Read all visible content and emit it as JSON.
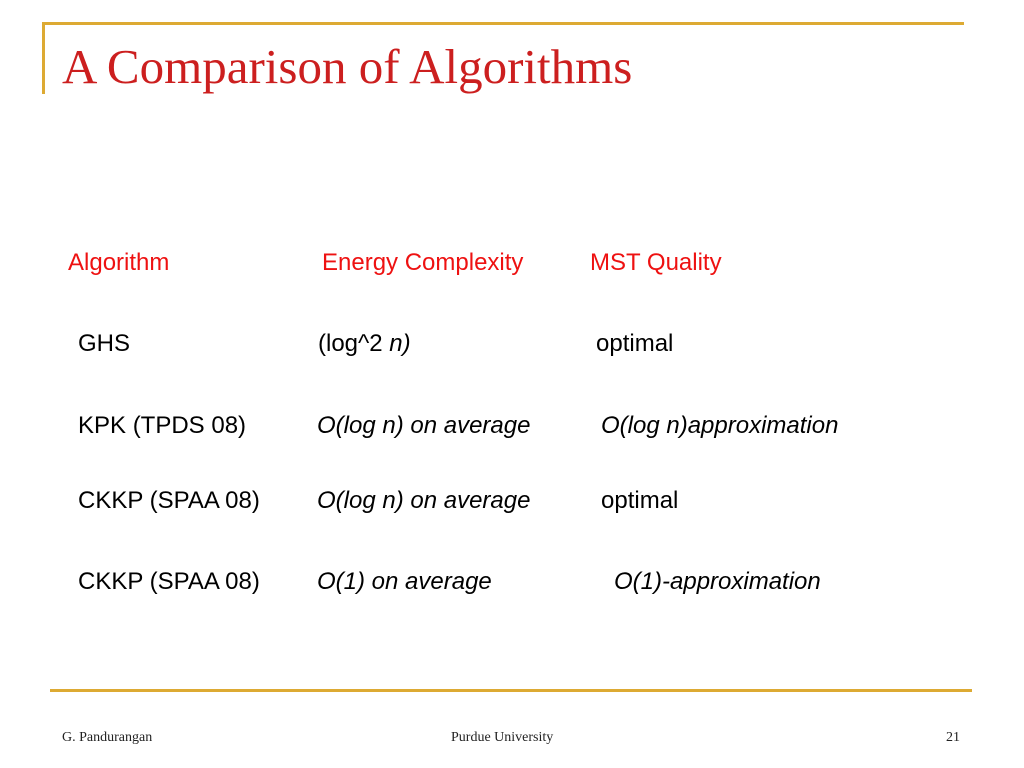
{
  "slide": {
    "title": "A Comparison of Algorithms"
  },
  "table": {
    "headers": {
      "algorithm": "Algorithm",
      "energy": "Energy Complexity",
      "quality": "MST Quality"
    },
    "rows": [
      {
        "algorithm": "GHS",
        "energy_prefix": "(log^2 ",
        "energy_var": "n",
        "energy_suffix": ")",
        "quality": "optimal"
      },
      {
        "algorithm": "KPK (TPDS 08)",
        "energy": "O(log n) on average",
        "quality": "O(log n)approximation"
      },
      {
        "algorithm": "CKKP (SPAA 08)",
        "energy": "O(log n) on average",
        "quality": "optimal"
      },
      {
        "algorithm": "CKKP (SPAA 08)",
        "energy": "O(1) on average",
        "quality": "O(1)-approximation"
      }
    ]
  },
  "footer": {
    "author": "G. Pandurangan",
    "institution": "Purdue University",
    "page_number": "21"
  },
  "colors": {
    "title": "#cc1f1f",
    "header_text": "#ee1111",
    "accent_rule": "#ddaa33"
  }
}
